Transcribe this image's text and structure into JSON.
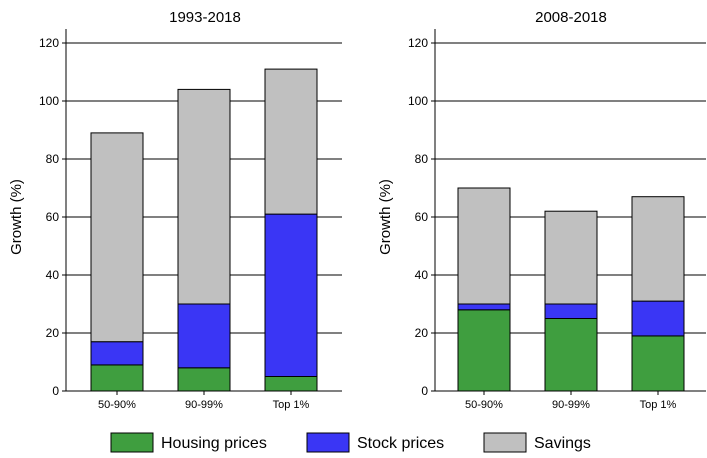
{
  "colors": {
    "housing": "#3f9e3f",
    "stock": "#3a36f5",
    "savings": "#c0c0c0"
  },
  "legend": {
    "housing": "Housing prices",
    "stock": "Stock prices",
    "savings": "Savings"
  },
  "chart_data": [
    {
      "type": "bar",
      "stacked": true,
      "title": "1993-2018",
      "ylabel": "Growth (%)",
      "ylim": [
        0,
        120
      ],
      "yticks": [
        0,
        20,
        40,
        60,
        80,
        100,
        120
      ],
      "grid": true,
      "categories": [
        "50-90%",
        "90-99%",
        "Top 1%"
      ],
      "series": [
        {
          "name": "Housing prices",
          "key": "housing",
          "values": [
            9,
            8,
            5
          ]
        },
        {
          "name": "Stock prices",
          "key": "stock",
          "values": [
            8,
            22,
            56
          ]
        },
        {
          "name": "Savings",
          "key": "savings",
          "values": [
            72,
            74,
            50
          ]
        }
      ]
    },
    {
      "type": "bar",
      "stacked": true,
      "title": "2008-2018",
      "ylabel": "Growth (%)",
      "ylim": [
        0,
        120
      ],
      "yticks": [
        0,
        20,
        40,
        60,
        80,
        100,
        120
      ],
      "grid": true,
      "categories": [
        "50-90%",
        "90-99%",
        "Top 1%"
      ],
      "series": [
        {
          "name": "Housing prices",
          "key": "housing",
          "values": [
            28,
            25,
            19
          ]
        },
        {
          "name": "Stock prices",
          "key": "stock",
          "values": [
            2,
            5,
            12
          ]
        },
        {
          "name": "Savings",
          "key": "savings",
          "values": [
            40,
            32,
            36
          ]
        }
      ]
    }
  ]
}
